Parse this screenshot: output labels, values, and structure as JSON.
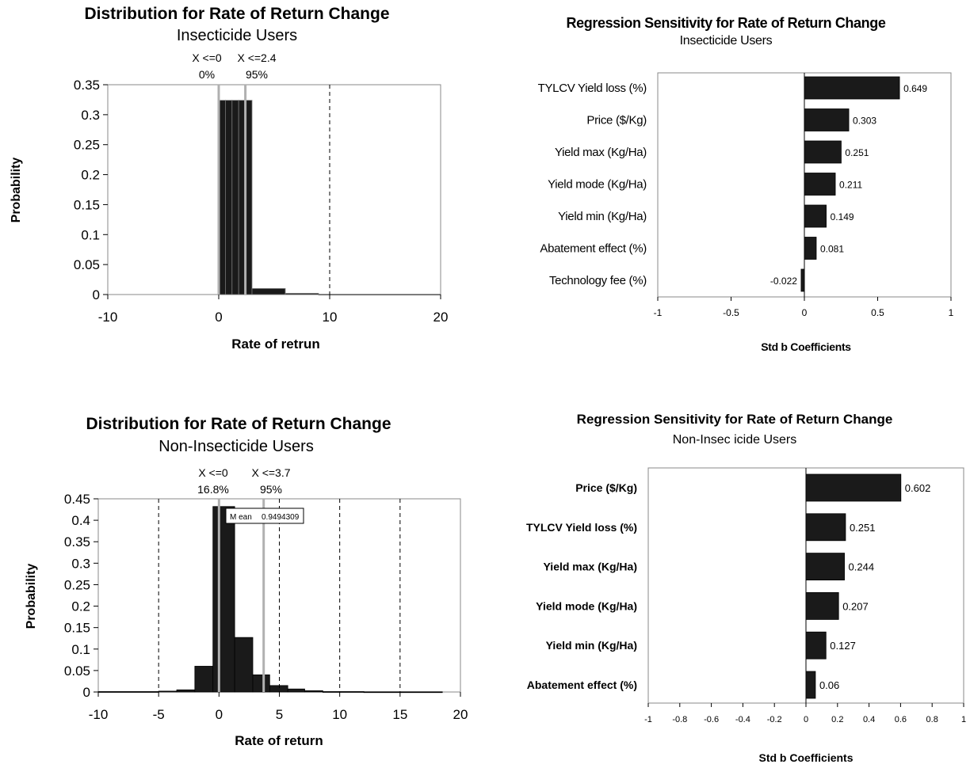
{
  "chart_data": [
    {
      "type": "bar",
      "title": "Distribution for Rate of Return Change",
      "subtitle": "Insecticide Users",
      "xlabel": "Rate of retrun",
      "ylabel": "Probability",
      "xlim": [
        -10,
        20
      ],
      "ylim": [
        0,
        0.35
      ],
      "x_ticks": [
        "-10",
        "0",
        "10",
        "20"
      ],
      "y_ticks": [
        "0",
        "0.05",
        "0.1",
        "0.15",
        "0.2",
        "0.25",
        "0.3",
        "0.35"
      ],
      "bins": [
        {
          "x0": 0.0,
          "x1": 0.6,
          "value": 0.324
        },
        {
          "x0": 0.6,
          "x1": 1.2,
          "value": 0.324
        },
        {
          "x0": 1.2,
          "x1": 1.8,
          "value": 0.324
        },
        {
          "x0": 1.8,
          "x1": 2.4,
          "value": 0.324
        },
        {
          "x0": 2.4,
          "x1": 3.0,
          "value": 0.324
        },
        {
          "x0": 3.0,
          "x1": 6.0,
          "value": 0.01
        },
        {
          "x0": 6.0,
          "x1": 9.0,
          "value": 0.002
        },
        {
          "x0": 9.0,
          "x1": 20.0,
          "value": 0.0005
        }
      ],
      "dashed_lines": [
        10
      ],
      "markers": [
        {
          "x": 0,
          "label": "X <=0",
          "pct": "0%"
        },
        {
          "x": 2.4,
          "label": "X <=2.4",
          "pct": "95%"
        }
      ]
    },
    {
      "type": "bar",
      "orientation": "horizontal",
      "title": "Regression Sensitivity for Rate of Return Change",
      "subtitle": "Insecticide Users",
      "xlabel": "Std b Coefficients",
      "xlim": [
        -1,
        1
      ],
      "x_ticks": [
        "-1",
        "-0.5",
        "0",
        "0.5",
        "1"
      ],
      "categories": [
        "TYLCV Yield loss (%)",
        "Price ($/Kg)",
        "Yield max (Kg/Ha)",
        "Yield mode (Kg/Ha)",
        "Yield min (Kg/Ha)",
        "Abatement effect (%)",
        "Technology fee (%)"
      ],
      "values": [
        0.649,
        0.303,
        0.251,
        0.211,
        0.149,
        0.081,
        -0.022
      ],
      "value_labels": [
        "0.649",
        "0.303",
        "0.251",
        "0.211",
        "0.149",
        "0.081",
        "-0.022"
      ]
    },
    {
      "type": "bar",
      "title": "Distribution for Rate of Return Change",
      "subtitle": "Non-Insecticide Users",
      "xlabel": "Rate of return",
      "ylabel": "Probability",
      "xlim": [
        -10,
        20
      ],
      "ylim": [
        0,
        0.45
      ],
      "x_ticks": [
        "-10",
        "-5",
        "0",
        "5",
        "10",
        "15",
        "20"
      ],
      "y_ticks": [
        "0",
        "0.05",
        "0.1",
        "0.15",
        "0.2",
        "0.25",
        "0.3",
        "0.35",
        "0.4",
        "0.45"
      ],
      "bins": [
        {
          "x0": -10.0,
          "x1": -5.0,
          "value": 0.001
        },
        {
          "x0": -5.0,
          "x1": -3.5,
          "value": 0.002
        },
        {
          "x0": -3.5,
          "x1": -2.0,
          "value": 0.005
        },
        {
          "x0": -2.0,
          "x1": -0.5,
          "value": 0.06
        },
        {
          "x0": -0.5,
          "x1": 1.3,
          "value": 0.432
        },
        {
          "x0": 1.3,
          "x1": 2.8,
          "value": 0.127
        },
        {
          "x0": 2.8,
          "x1": 4.2,
          "value": 0.04
        },
        {
          "x0": 4.2,
          "x1": 5.7,
          "value": 0.015
        },
        {
          "x0": 5.7,
          "x1": 7.1,
          "value": 0.007
        },
        {
          "x0": 7.1,
          "x1": 8.6,
          "value": 0.003
        },
        {
          "x0": 8.6,
          "x1": 12.0,
          "value": 0.001
        },
        {
          "x0": 12.0,
          "x1": 18.5,
          "value": 0.0005
        }
      ],
      "dashed_lines": [
        -5,
        5,
        10,
        15
      ],
      "markers": [
        {
          "x": 0,
          "label": "X <=0",
          "pct": "16.8%"
        },
        {
          "x": 3.7,
          "label": "X <=3.7",
          "pct": "95%"
        }
      ],
      "mean_box": {
        "label": "M ean",
        "value": "0.9494309"
      }
    },
    {
      "type": "bar",
      "orientation": "horizontal",
      "title": "Regression Sensitivity for Rate of Return Change",
      "subtitle": "Non-Insec icide Users",
      "xlabel": "Std b Coefficients",
      "xlim": [
        -1,
        1
      ],
      "x_ticks": [
        "-1",
        "-0.8",
        "-0.6",
        "-0.4",
        "-0.2",
        "0",
        "0.2",
        "0.4",
        "0.6",
        "0.8",
        "1"
      ],
      "categories": [
        "Price ($/Kg)",
        "TYLCV Yield loss (%)",
        "Yield max (Kg/Ha)",
        "Yield mode (Kg/Ha)",
        "Yield min (Kg/Ha)",
        "Abatement effect (%)"
      ],
      "values": [
        0.602,
        0.251,
        0.244,
        0.207,
        0.127,
        0.06
      ],
      "value_labels": [
        "0.602",
        "0.251",
        "0.244",
        "0.207",
        "0.127",
        "0.06"
      ]
    }
  ]
}
